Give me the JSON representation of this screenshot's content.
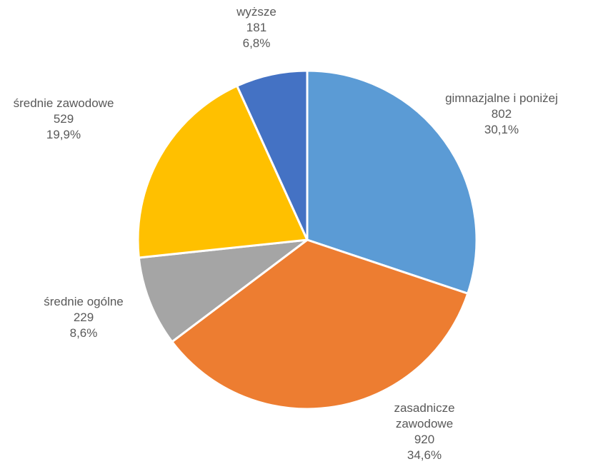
{
  "chart_data": {
    "type": "pie",
    "slices": [
      {
        "label": "gimnazjalne i poniżej",
        "label_lines": [
          "gimnazjalne i poniżej"
        ],
        "value": 802,
        "percent": "30,1%",
        "color": "#5B9BD5"
      },
      {
        "label": "zasadnicze zawodowe",
        "label_lines": [
          "zasadnicze",
          "zawodowe"
        ],
        "value": 920,
        "percent": "34,6%",
        "color": "#ED7D31"
      },
      {
        "label": "średnie ogólne",
        "label_lines": [
          "średnie ogólne"
        ],
        "value": 229,
        "percent": "8,6%",
        "color": "#A5A5A5"
      },
      {
        "label": "średnie zawodowe",
        "label_lines": [
          "średnie zawodowe"
        ],
        "value": 529,
        "percent": "19,9%",
        "color": "#FFC000"
      },
      {
        "label": "wyższe",
        "label_lines": [
          "wyższe"
        ],
        "value": 181,
        "percent": "6,8%",
        "color": "#4472C4"
      }
    ],
    "start": "top",
    "direction": "clockwise",
    "legend": "none"
  }
}
